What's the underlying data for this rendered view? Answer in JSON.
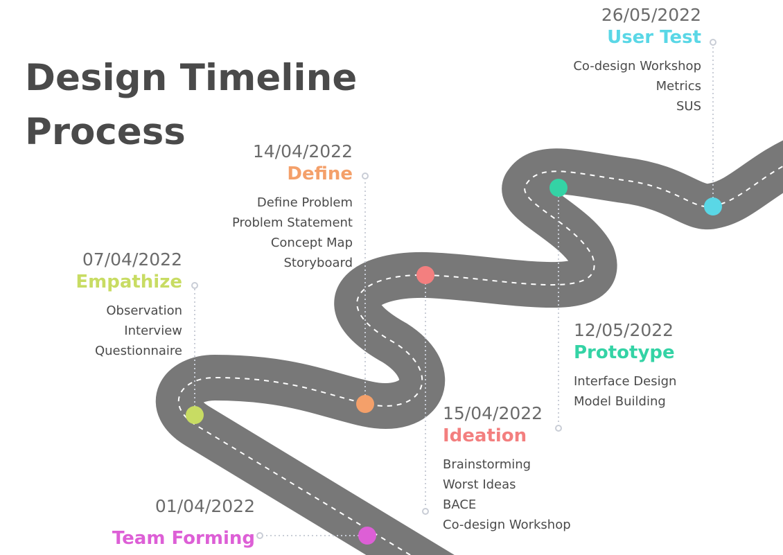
{
  "title": {
    "line1": "Design Timeline",
    "line2": "Process"
  },
  "colors": {
    "road": "#787878",
    "lane_marking": "#ffffff",
    "connector": "#c9cdd6"
  },
  "stages": [
    {
      "id": "team-forming",
      "date": "01/04/2022",
      "name": "Team Forming",
      "color": "#dd5fd6",
      "items": []
    },
    {
      "id": "empathize",
      "date": "07/04/2022",
      "name": "Empathize",
      "color": "#c8dc63",
      "items": [
        "Observation",
        "Interview",
        "Questionnaire"
      ]
    },
    {
      "id": "define",
      "date": "14/04/2022",
      "name": "Define",
      "color": "#f4a06a",
      "items": [
        "Define Problem",
        "Problem Statement",
        "Concept Map",
        "Storyboard"
      ]
    },
    {
      "id": "ideation",
      "date": "15/04/2022",
      "name": "Ideation",
      "color": "#f37f7f",
      "items": [
        "Brainstorming",
        "Worst Ideas",
        "BACE",
        "Co-design Workshop"
      ]
    },
    {
      "id": "prototype",
      "date": "12/05/2022",
      "name": "Prototype",
      "color": "#34d3a5",
      "items": [
        "Interface Design",
        "Model Building"
      ]
    },
    {
      "id": "user-test",
      "date": "26/05/2022",
      "name": "User Test",
      "color": "#5ad7e6",
      "items": [
        "Co-design Workshop",
        "Metrics",
        "SUS"
      ]
    }
  ]
}
